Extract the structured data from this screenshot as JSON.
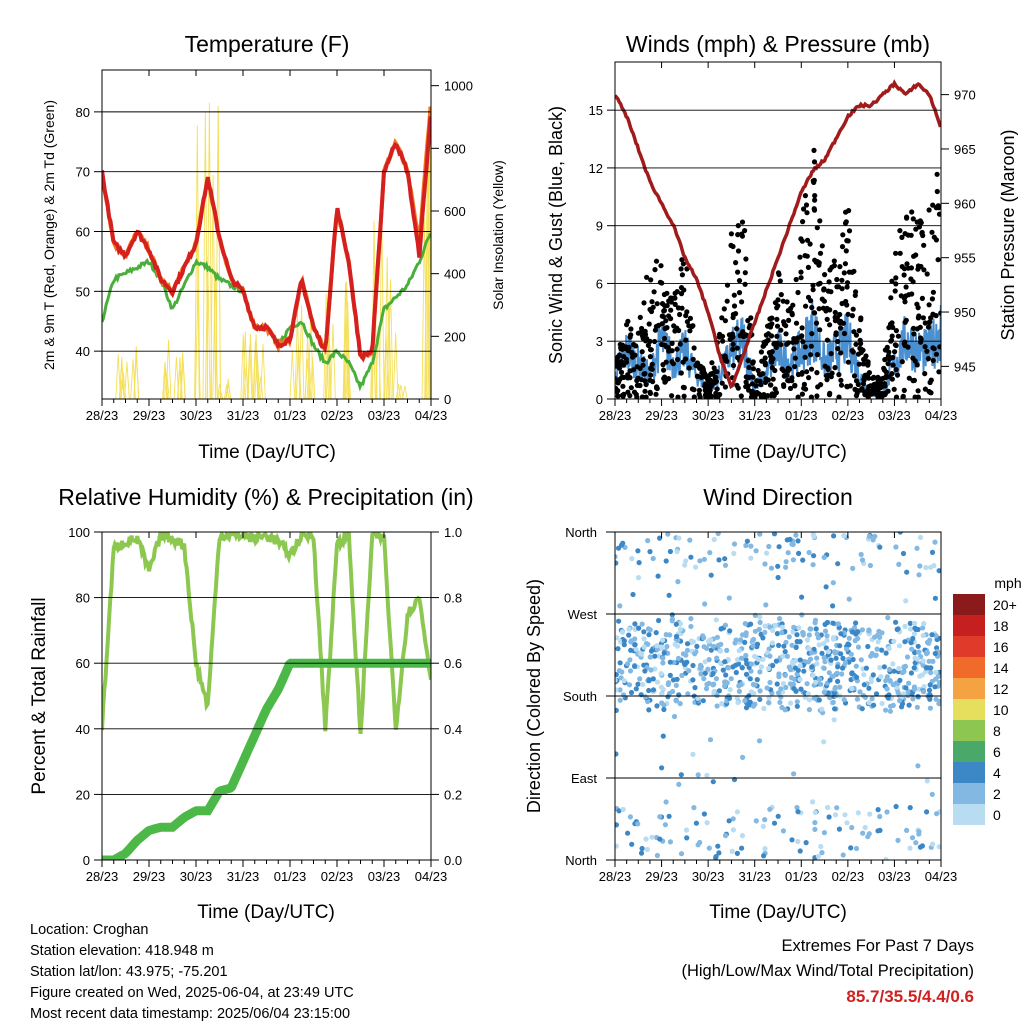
{
  "colors": {
    "temp2m": "#d52020",
    "temp9m": "#f47a20",
    "dewpoint": "#4aae3a",
    "solar": "#f5e05a",
    "wind": "#4a8fd0",
    "gust": "#000000",
    "pressure": "#a01c1c",
    "rh": "#8cc850",
    "precip": "#4cb848",
    "extremes": "#d02020"
  },
  "x_ticks": [
    "28/23",
    "29/23",
    "30/23",
    "31/23",
    "01/23",
    "02/23",
    "03/23",
    "04/23"
  ],
  "info": {
    "location": "Location: Croghan",
    "elevation": "Station elevation: 418.948 m",
    "latlon": "Station lat/lon: 43.975; -75.201",
    "created": "Figure created on Wed, 2025-06-04, at 23:49 UTC",
    "recent": "Most recent data timestamp: 2025/06/04 23:15:00"
  },
  "extremes": {
    "title": "Extremes For Past 7 Days",
    "subtitle": "(High/Low/Max Wind/Total Precipitation)",
    "values": "85.7/35.5/4.4/0.6"
  },
  "chart_data": [
    {
      "type": "line",
      "title": "Temperature (F)",
      "xlabel": "Time (Day/UTC)",
      "ylabel": "2m & 9m T (Red, Orange) & 2m Td (Green)",
      "y2label": "Solar Insolation (Yellow)",
      "x": [
        0,
        0.25,
        0.5,
        0.75,
        1,
        1.25,
        1.5,
        1.75,
        2,
        2.25,
        2.5,
        2.75,
        3,
        3.25,
        3.5,
        3.75,
        4,
        4.25,
        4.5,
        4.75,
        5,
        5.25,
        5.5,
        5.75,
        6,
        6.25,
        6.5,
        6.75,
        7
      ],
      "ylim": [
        32,
        87
      ],
      "yticks": [
        40,
        50,
        60,
        70,
        80
      ],
      "y2lim": [
        0,
        1050
      ],
      "y2ticks": [
        0,
        200,
        400,
        600,
        800,
        1000
      ],
      "series": [
        {
          "values": [
            70,
            58,
            56,
            60,
            57,
            52,
            50,
            54,
            58,
            69,
            59,
            52,
            50,
            44,
            44,
            41,
            42,
            52,
            44,
            40,
            64,
            55,
            39,
            40,
            70,
            75,
            70,
            56,
            80
          ]
        },
        {
          "values": [
            70,
            58,
            56,
            60,
            57,
            52,
            50,
            54,
            58,
            69,
            59,
            52,
            50,
            44,
            44,
            41,
            42,
            52,
            44,
            40,
            64,
            55,
            39,
            40,
            70,
            75,
            70,
            58,
            82
          ]
        },
        {
          "values": [
            45,
            52,
            53,
            54,
            55,
            52,
            47,
            51,
            55,
            54,
            52,
            51,
            50,
            44,
            44,
            41,
            44,
            45,
            41,
            38,
            40,
            38,
            34,
            38,
            47,
            49,
            51,
            55,
            60
          ]
        },
        {
          "values": [
            0,
            0,
            180,
            0,
            0,
            0,
            200,
            0,
            0,
            1000,
            100,
            0,
            0,
            220,
            0,
            0,
            0,
            300,
            0,
            0,
            400,
            0,
            0,
            0,
            600,
            50,
            0,
            0,
            900
          ]
        }
      ]
    },
    {
      "type": "scatter",
      "title": "Winds (mph) & Pressure (mb)",
      "xlabel": "Time (Day/UTC)",
      "ylabel": "Sonic Wind & Gust (Blue, Black)",
      "y2label": "Station Pressure (Maroon)",
      "x": [
        0,
        0.25,
        0.5,
        0.75,
        1,
        1.25,
        1.5,
        1.75,
        2,
        2.25,
        2.5,
        2.75,
        3,
        3.25,
        3.5,
        3.75,
        4,
        4.25,
        4.5,
        4.75,
        5,
        5.25,
        5.5,
        5.75,
        6,
        6.25,
        6.5,
        6.75,
        7
      ],
      "ylim": [
        0,
        17.5
      ],
      "yticks": [
        0,
        3,
        6,
        9,
        12,
        15
      ],
      "y2lim": [
        942,
        973
      ],
      "y2ticks": [
        945,
        950,
        955,
        960,
        965,
        970
      ],
      "series": [
        {
          "values": [
            1,
            2,
            1.5,
            1,
            2.5,
            1.5,
            2,
            1,
            0.5,
            1,
            2,
            2.5,
            0.5,
            1,
            2,
            1.5,
            2,
            3,
            1.5,
            2,
            2.5,
            1,
            0.2,
            0.2,
            1.5,
            2.5,
            2,
            2,
            3
          ]
        },
        {
          "values": [
            1.5,
            4,
            3,
            7,
            6,
            5,
            7,
            2,
            1,
            3,
            8,
            9,
            1,
            3,
            6,
            4,
            8,
            12,
            6,
            7,
            9,
            4,
            1,
            1,
            7,
            9,
            8,
            9,
            12
          ]
        },
        {
          "values": [
            970,
            968,
            965,
            962,
            960,
            958,
            955,
            953,
            950,
            946,
            943,
            946,
            949,
            952,
            955,
            958,
            961,
            963,
            964,
            966,
            968,
            969,
            969,
            970,
            971,
            970,
            971,
            970,
            967
          ]
        }
      ]
    },
    {
      "type": "line",
      "title": "Relative Humidity (%) & Precipitation (in)",
      "xlabel": "Time (Day/UTC)",
      "ylabel": "Percent & Total Rainfall",
      "x": [
        0,
        0.25,
        0.5,
        0.75,
        1,
        1.25,
        1.5,
        1.75,
        2,
        2.25,
        2.5,
        2.75,
        3,
        3.25,
        3.5,
        3.75,
        4,
        4.25,
        4.5,
        4.75,
        5,
        5.25,
        5.5,
        5.75,
        6,
        6.25,
        6.5,
        6.75,
        7
      ],
      "ylim": [
        0,
        100
      ],
      "yticks": [
        0,
        20,
        40,
        60,
        80,
        100
      ],
      "y2lim": [
        0,
        1
      ],
      "y2ticks": [
        0.0,
        0.2,
        0.4,
        0.6,
        0.8,
        1.0
      ],
      "series": [
        {
          "values": [
            40,
            95,
            97,
            98,
            88,
            99,
            98,
            96,
            60,
            47,
            99,
            99,
            99,
            98,
            99,
            97,
            93,
            99,
            99,
            40,
            96,
            99,
            38,
            99,
            98,
            40,
            75,
            80,
            55
          ]
        },
        {
          "values": [
            0,
            0,
            0.02,
            0.06,
            0.09,
            0.1,
            0.1,
            0.13,
            0.15,
            0.15,
            0.21,
            0.22,
            0.3,
            0.38,
            0.46,
            0.52,
            0.6,
            0.6,
            0.6,
            0.6,
            0.6,
            0.6,
            0.6,
            0.6,
            0.6,
            0.6,
            0.6,
            0.6,
            0.6
          ]
        }
      ]
    },
    {
      "type": "scatter",
      "title": "Wind Direction",
      "xlabel": "Time (Day/UTC)",
      "ylabel": "Direction (Colored By Speed)",
      "yticklabels": [
        "North",
        "East",
        "South",
        "West",
        "North"
      ],
      "ylim": [
        0,
        360
      ],
      "x": [
        0.1,
        0.3,
        0.6,
        0.9,
        1.2,
        1.5,
        1.8,
        2.1,
        2.4,
        2.6,
        2.75,
        3.0,
        3.3,
        3.6,
        3.9,
        4.1,
        4.4,
        4.7,
        5.0,
        5.2,
        5.5,
        5.7,
        6.0,
        6.3,
        6.6,
        6.9
      ],
      "y": [
        200,
        220,
        190,
        230,
        210,
        215,
        225,
        240,
        180,
        20,
        350,
        20,
        230,
        210,
        240,
        220,
        200,
        230,
        250,
        220,
        180,
        20,
        200,
        210,
        220,
        230
      ],
      "speed": [
        1,
        1,
        2,
        3,
        2,
        3,
        4,
        3,
        1,
        2,
        1,
        3,
        2,
        3,
        4,
        3,
        2,
        3,
        4,
        2,
        1,
        1,
        3,
        2,
        3,
        4
      ],
      "legend_title": "mph",
      "legend_labels": [
        "20+",
        "18",
        "16",
        "14",
        "12",
        "10",
        "8",
        "6",
        "4",
        "2",
        "0"
      ],
      "legend_colors": [
        "#8b1a1a",
        "#c61f1f",
        "#e03a2a",
        "#f06a2a",
        "#f5a242",
        "#e6df5e",
        "#8dc650",
        "#4aa86a",
        "#3c88c6",
        "#82b8e2",
        "#b8dcf2"
      ]
    }
  ]
}
